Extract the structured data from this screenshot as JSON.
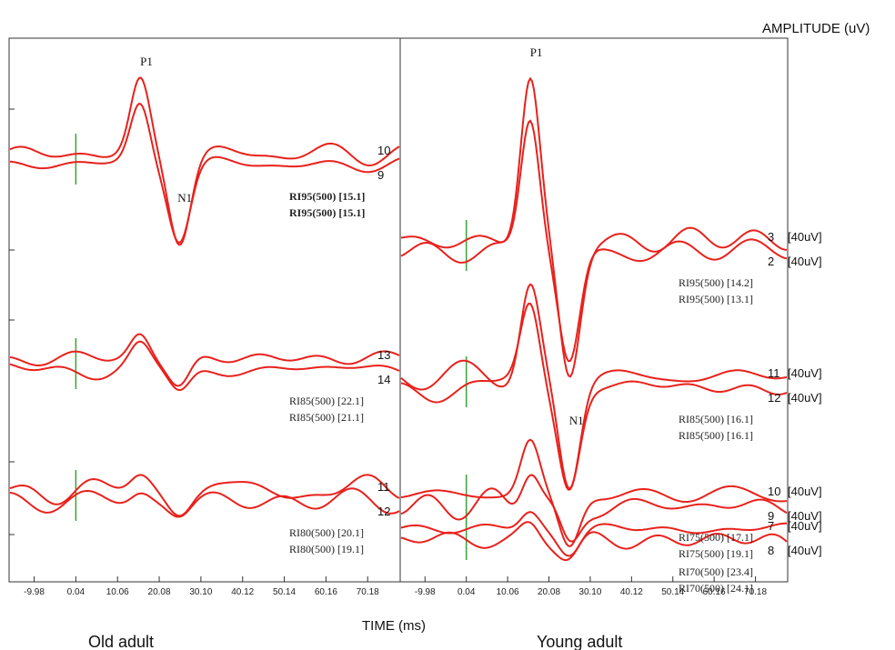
{
  "chart_data": {
    "type": "line",
    "ylabel": "AMPLITUDE (uV)",
    "xlabel": "TIME (ms)",
    "x_ticks": [
      "-9.98",
      "0.04",
      "10.06",
      "20.08",
      "30.10",
      "40.12",
      "50.14",
      "60.16",
      "70.18"
    ],
    "x_tick_values": [
      -9.98,
      0.04,
      10.06,
      20.08,
      30.1,
      40.12,
      50.14,
      60.16,
      70.18
    ],
    "xlim": [
      -16,
      78
    ],
    "panels": [
      {
        "title": "Old adult",
        "peaks": [
          {
            "label": "P1",
            "x": 15.5
          },
          {
            "label": "N1",
            "x": 24.5
          }
        ],
        "groups": [
          {
            "numbers": [
              "10",
              "9"
            ],
            "traces": [
              "RI95(500) [15.1]",
              "RI95(500) [15.1]"
            ]
          },
          {
            "numbers": [
              "13",
              "14"
            ],
            "traces": [
              "RI85(500) [22.1]",
              "RI85(500) [21.1]"
            ]
          },
          {
            "numbers": [
              "11",
              "12"
            ],
            "traces": [
              "RI80(500) [20.1]",
              "RI80(500) [19.1]"
            ]
          }
        ]
      },
      {
        "title": "Young adult",
        "peaks": [
          {
            "label": "P1",
            "x": 15.5
          },
          {
            "label": "N1",
            "x": 25
          }
        ],
        "groups": [
          {
            "numbers": [
              "3",
              "2"
            ],
            "scales": [
              "[40uV]",
              "[40uV]"
            ],
            "traces": [
              "RI95(500) [14.2]",
              "RI95(500) [13.1]"
            ]
          },
          {
            "numbers": [
              "11",
              "12"
            ],
            "scales": [
              "[40uV]",
              "[40uV]"
            ],
            "traces": [
              "RI85(500) [16.1]",
              "RI85(500) [16.1]"
            ]
          },
          {
            "numbers": [
              "10",
              "9"
            ],
            "scales": [
              "[40uV]",
              "[40uV]"
            ],
            "traces": [
              "RI75(500) [17.1]",
              "RI75(500) [19.1]"
            ]
          },
          {
            "numbers": [
              "7",
              "8"
            ],
            "scales": [
              "[40uV]",
              "[40uV]"
            ],
            "traces": [
              "RI70(500) [23.4]",
              "RI70(500) [24.1]"
            ]
          }
        ]
      }
    ]
  },
  "colors": {
    "trace": "#e8211c",
    "marker": "#3aa23a",
    "axis": "#333333"
  }
}
